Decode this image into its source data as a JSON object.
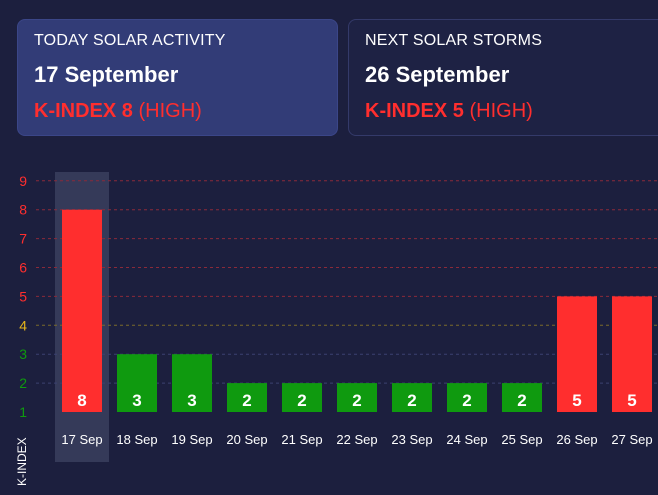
{
  "cards": {
    "today": {
      "label": "TODAY SOLAR ACTIVITY",
      "date": "17 September",
      "kindex_prefix": "K-INDEX",
      "kindex_value": "8",
      "level": "(HIGH)"
    },
    "next": {
      "label": "NEXT SOLAR STORMS",
      "date": "26 September",
      "kindex_prefix": "K-INDEX",
      "kindex_value": "5",
      "level": "(HIGH)"
    }
  },
  "colors": {
    "high": "#ff2e2e",
    "low": "#0f9a0f",
    "moderate_tick": "#e5b51a",
    "grid_high": "#8a2a3a",
    "grid_moderate": "#7a6a2a",
    "selected_column": "#3a3f5e"
  },
  "chart_data": {
    "type": "bar",
    "ylabel": "K-INDEX",
    "ylim": [
      1,
      9
    ],
    "yticks": [
      1,
      2,
      3,
      4,
      5,
      6,
      7,
      8,
      9
    ],
    "categories": [
      "17 Sep",
      "18 Sep",
      "19 Sep",
      "20 Sep",
      "21 Sep",
      "22 Sep",
      "23 Sep",
      "24 Sep",
      "25 Sep",
      "26 Sep",
      "27 Sep"
    ],
    "values": [
      8,
      3,
      3,
      2,
      2,
      2,
      2,
      2,
      2,
      5,
      5
    ],
    "selected_index": 0,
    "grid": true
  }
}
